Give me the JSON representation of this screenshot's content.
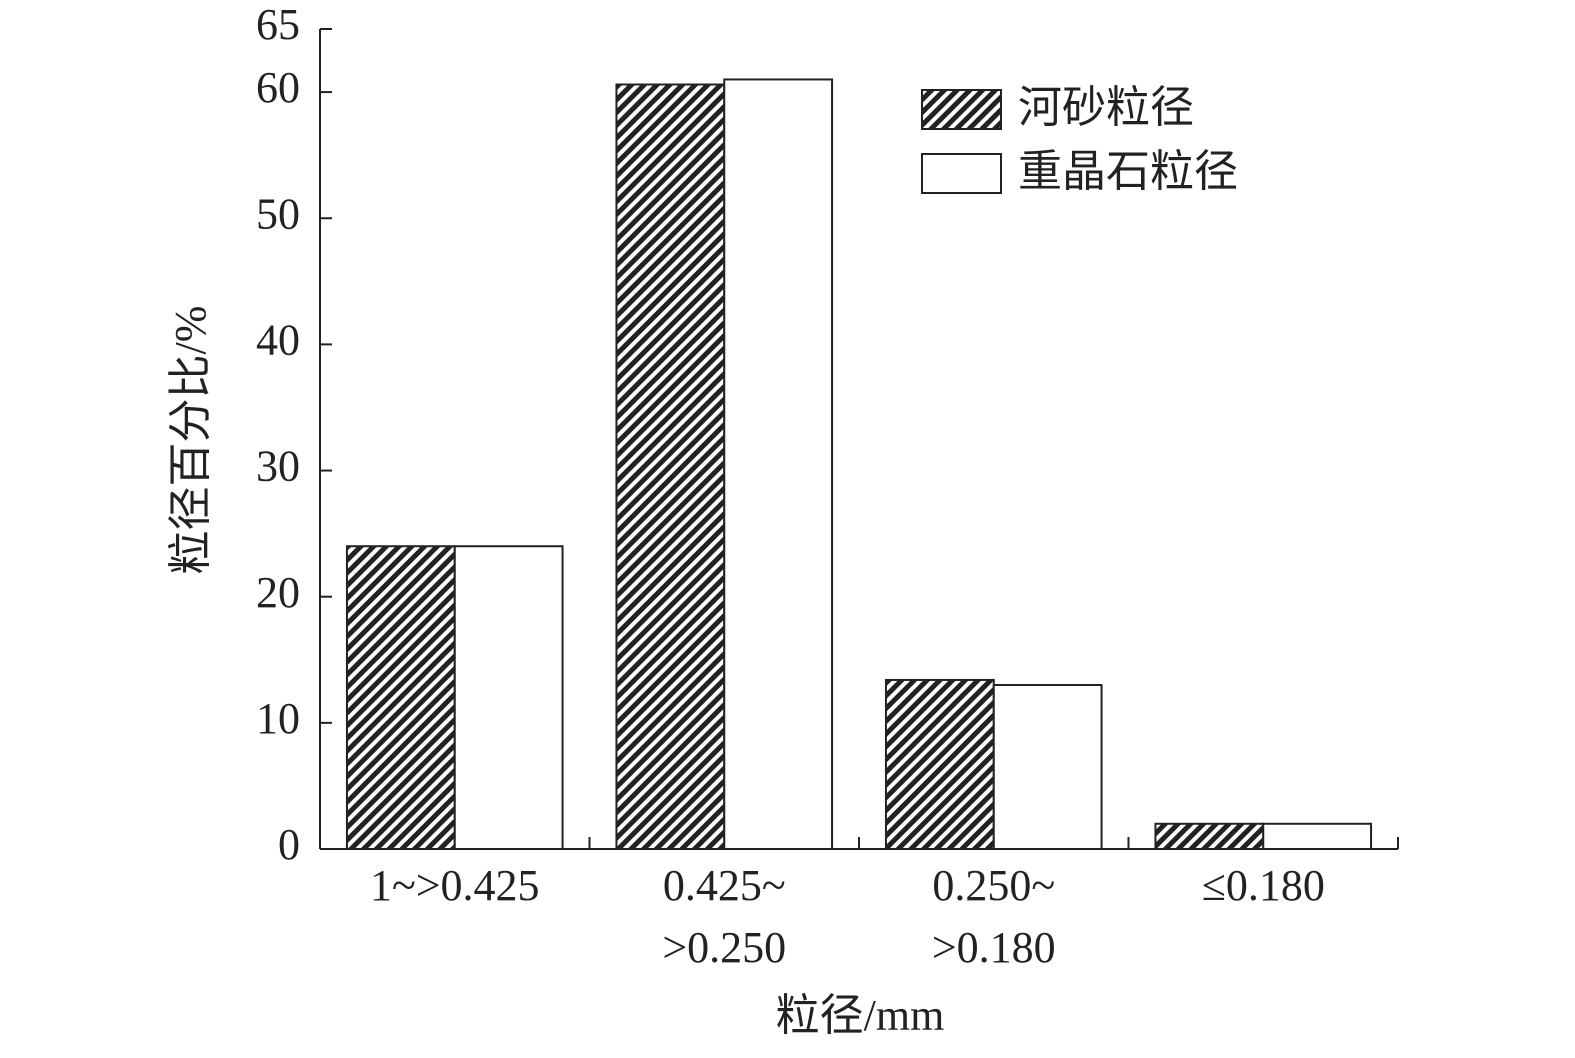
{
  "chart_data": {
    "type": "bar",
    "x_label": "粒径/mm",
    "y_label": "粒径百分比/%",
    "categories": [
      [
        "1~>0.425"
      ],
      [
        "0.425~",
        ">0.250"
      ],
      [
        "0.250~",
        ">0.180"
      ],
      [
        "≤0.180"
      ]
    ],
    "series": [
      {
        "name": "河砂粒径",
        "color": "#222222",
        "pattern": "hatch",
        "values": [
          24,
          60.6,
          13.4,
          2
        ]
      },
      {
        "name": "重晶石粒径",
        "color": "#ffffff",
        "pattern": "none",
        "values": [
          24,
          61,
          13,
          2
        ]
      }
    ],
    "ylim": [
      0,
      65
    ],
    "yticks": [
      0,
      10,
      20,
      30,
      40,
      50,
      60,
      65
    ],
    "legend": "upper right"
  }
}
